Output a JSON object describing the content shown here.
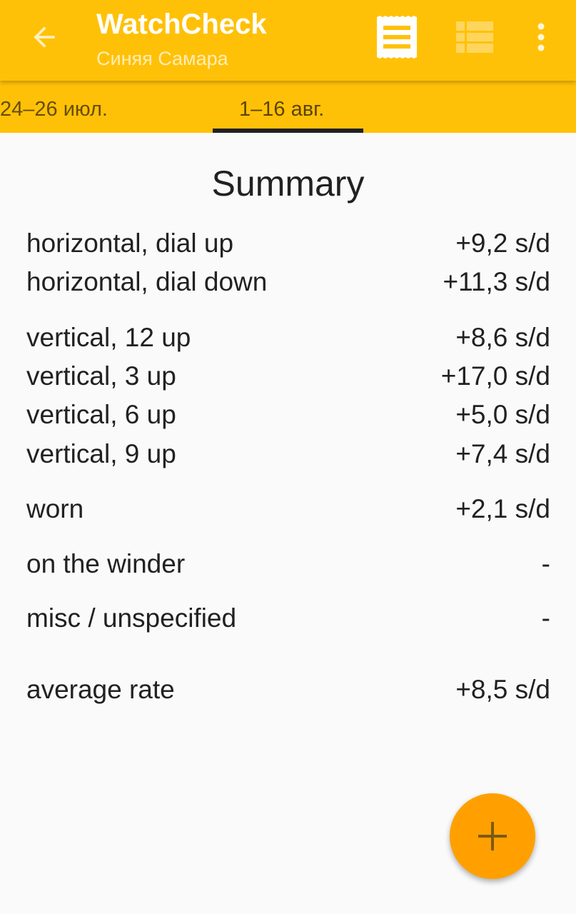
{
  "appbar": {
    "title": "WatchCheck",
    "subtitle": "Синяя Самара",
    "icons": [
      "arrow-back-icon",
      "receipt-icon",
      "view-list-icon",
      "more-vert-icon"
    ]
  },
  "tabs": [
    {
      "label": "24–26 июл.",
      "active": false
    },
    {
      "label": "1–16 авг.",
      "active": true
    }
  ],
  "summary": {
    "heading": "Summary",
    "rows": [
      {
        "label": "horizontal, dial up",
        "value": "+9,2 s/d"
      },
      {
        "label": "horizontal, dial down",
        "value": "+11,3 s/d"
      },
      {
        "label": "vertical, 12 up",
        "value": "+8,6 s/d"
      },
      {
        "label": "vertical, 3 up",
        "value": "+17,0 s/d"
      },
      {
        "label": "vertical, 6 up",
        "value": "+5,0 s/d"
      },
      {
        "label": "vertical, 9 up",
        "value": "+7,4 s/d"
      },
      {
        "label": "worn",
        "value": "+2,1 s/d"
      },
      {
        "label": "on the winder",
        "value": "-"
      },
      {
        "label": "misc / unspecified",
        "value": "-"
      },
      {
        "label": "average rate",
        "value": "+8,5 s/d"
      }
    ]
  },
  "fab": {
    "icon": "plus-icon"
  },
  "colors": {
    "primary": "#ffc107",
    "accent": "#ffa000",
    "text": "#212121"
  }
}
